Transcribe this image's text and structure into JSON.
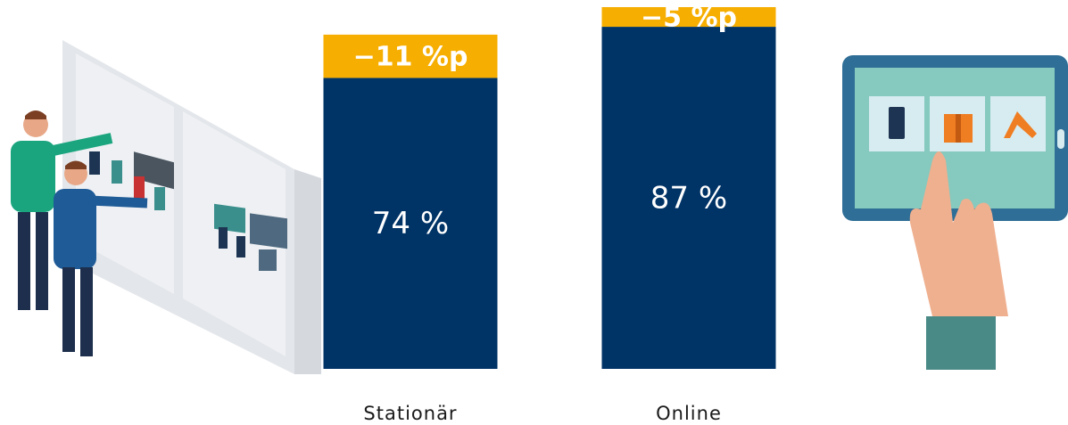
{
  "chart_data": {
    "type": "stacked-bar",
    "categories": [
      "Stationär",
      "Online"
    ],
    "series": [
      {
        "color": "#003366",
        "values": [
          74,
          87
        ],
        "value_labels": [
          "74 %",
          "87 %"
        ]
      },
      {
        "color": "#f6ae00",
        "values": [
          -11,
          -5
        ],
        "value_labels": [
          "−11 %p",
          "−5 %p"
        ]
      }
    ]
  }
}
